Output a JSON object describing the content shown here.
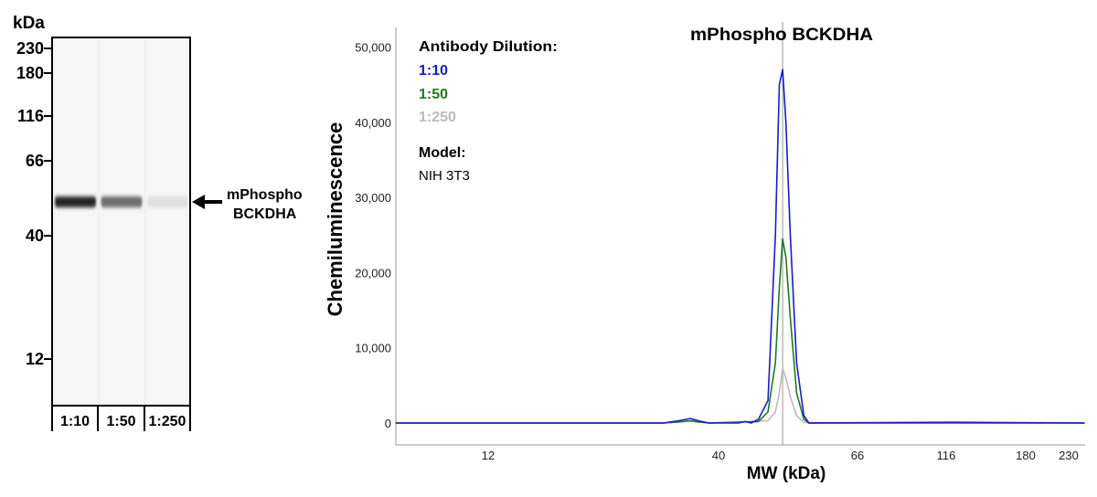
{
  "blot": {
    "unit_label": "kDa",
    "ladder": [
      "230",
      "180",
      "116",
      "66",
      "40",
      "12"
    ],
    "lanes": [
      {
        "label": "1:10",
        "band_intensity": 0.92
      },
      {
        "label": "1:50",
        "band_intensity": 0.6
      },
      {
        "label": "1:250",
        "band_intensity": 0.1
      }
    ],
    "band_label_line1": "mPhospho",
    "band_label_line2": "BCKDHA"
  },
  "chart_data": {
    "type": "line",
    "title": "mPhospho BCKDHA",
    "xlabel": "MW (kDa)",
    "ylabel": "Chemiluminescence",
    "x_ticks": [
      12,
      40,
      66,
      116,
      180,
      230
    ],
    "y_ticks": [
      "0",
      "10,000",
      "20,000",
      "30,000",
      "40,000",
      "50,000"
    ],
    "ylim": [
      -3000,
      52500
    ],
    "xlim": [
      7.4,
      252
    ],
    "x_scale": "log",
    "grid": false,
    "marker_line_kDa": 50.4,
    "legend": {
      "heading": "Antibody Dilution:",
      "model_heading": "Model:",
      "model_value": "NIH 3T3",
      "placement": "top-left"
    },
    "series": [
      {
        "name": "1:10",
        "color": "#1a1acc",
        "x": [
          7.4,
          30,
          32.5,
          34.5,
          36,
          38,
          43,
          44,
          45,
          46.2,
          47.8,
          49.1,
          49.8,
          50.4,
          51.0,
          51.8,
          53.0,
          54.4,
          55.4,
          120,
          252
        ],
        "y": [
          0,
          0,
          300,
          600,
          300,
          0,
          0,
          200,
          0,
          500,
          3000,
          25000,
          45000,
          47000,
          40000,
          25000,
          8000,
          1000,
          0,
          100,
          0
        ]
      },
      {
        "name": "1:50",
        "color": "#1f7a1f",
        "x": [
          7.4,
          30,
          32.5,
          34.5,
          36,
          38,
          46.2,
          47.8,
          49.1,
          49.8,
          50.4,
          51.0,
          51.8,
          53.0,
          54.4,
          55.4,
          252
        ],
        "y": [
          0,
          0,
          150,
          300,
          150,
          0,
          200,
          1500,
          8000,
          18000,
          24500,
          22000,
          14000,
          4000,
          500,
          0,
          0
        ]
      },
      {
        "name": "1:250",
        "color": "#bbbbbb",
        "x": [
          7.4,
          30,
          32.5,
          34.5,
          36,
          38,
          47.8,
          49.1,
          49.8,
          50.4,
          51.0,
          51.8,
          53.0,
          54.4,
          55.4,
          252
        ],
        "y": [
          0,
          0,
          120,
          250,
          120,
          0,
          300,
          1500,
          4000,
          7200,
          6000,
          3500,
          1000,
          100,
          0,
          0
        ]
      }
    ]
  }
}
